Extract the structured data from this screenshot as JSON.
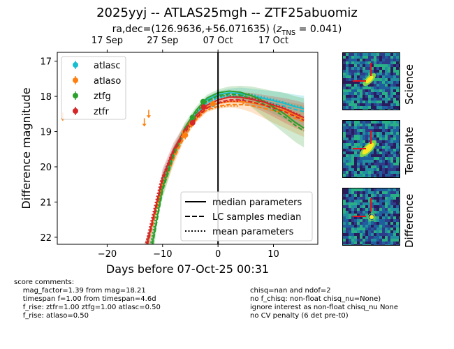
{
  "title": "2025yyj -- ATLAS25mgh -- ZTF25abuomiz",
  "subtitle_prefix": "ra,dec=(126.9636,+56.071635) (",
  "subtitle_z_symbol": "z",
  "subtitle_z_sub": "TNS",
  "subtitle_suffix": " = 0.041)",
  "chart_data": {
    "type": "scatter",
    "xlabel": "Days before 07-Oct-25 00:31",
    "ylabel": "Difference magnitude",
    "xlim": [
      -29,
      18
    ],
    "ylim": [
      22.2,
      16.75
    ],
    "x_ticks": [
      -20,
      -10,
      0,
      10
    ],
    "y_ticks": [
      17,
      18,
      19,
      20,
      21,
      22
    ],
    "top_axis_ticks": [
      {
        "label": "17 Sep",
        "x": -20
      },
      {
        "label": "27 Sep",
        "x": -10
      },
      {
        "label": "07 Oct",
        "x": 0
      },
      {
        "label": "17 Oct",
        "x": 10
      }
    ],
    "vline_x": 0,
    "series": [
      {
        "name": "atlasc",
        "color": "#17becf",
        "points": [
          {
            "x": -0.9,
            "y": 18.22,
            "err": 0.08
          }
        ],
        "upper_limits": []
      },
      {
        "name": "atlaso",
        "color": "#ff7f0e",
        "points": [
          {
            "x": -5.9,
            "y": 19.1,
            "err": 0.12
          },
          {
            "x": -4.8,
            "y": 18.78,
            "err": 0.1
          },
          {
            "x": -0.9,
            "y": 18.21,
            "err": 0.07
          }
        ],
        "upper_limits": [
          {
            "x": -28.0,
            "y": 18.58
          },
          {
            "x": -13.3,
            "y": 18.74
          },
          {
            "x": -12.5,
            "y": 18.5
          },
          {
            "x": -6.4,
            "y": 19.08
          }
        ]
      },
      {
        "name": "ztfg",
        "color": "#2ca02c",
        "points": [
          {
            "x": -4.6,
            "y": 18.6,
            "err": 0.05
          },
          {
            "x": -2.7,
            "y": 18.15,
            "err": 0.05
          }
        ],
        "upper_limits": []
      },
      {
        "name": "ztfr",
        "color": "#d62728",
        "points": [
          {
            "x": -4.6,
            "y": 18.75,
            "err": 0.05
          },
          {
            "x": -2.6,
            "y": 18.3,
            "err": 0.05
          }
        ],
        "upper_limits": []
      }
    ],
    "models": [
      {
        "series": "atlasc",
        "color": "#17becf",
        "median": [
          [
            -13,
            22.3
          ],
          [
            -10,
            20.4
          ],
          [
            -8,
            19.6
          ],
          [
            -6,
            19.0
          ],
          [
            -4,
            18.5
          ],
          [
            -2,
            18.1
          ],
          [
            0,
            17.95
          ],
          [
            2,
            17.9
          ],
          [
            4,
            17.92
          ],
          [
            6,
            17.98
          ],
          [
            8,
            18.05
          ],
          [
            10,
            18.12
          ],
          [
            12,
            18.2
          ],
          [
            14,
            18.3
          ],
          [
            15.5,
            18.35
          ]
        ],
        "band_hi": [
          [
            -12,
            22.3
          ],
          [
            -10,
            20.1
          ],
          [
            -8,
            19.4
          ],
          [
            -6,
            18.85
          ],
          [
            -4,
            18.4
          ],
          [
            -2,
            18.0
          ],
          [
            0,
            17.85
          ],
          [
            2,
            17.78
          ],
          [
            4,
            17.75
          ],
          [
            6,
            17.78
          ],
          [
            8,
            17.82
          ],
          [
            10,
            17.85
          ],
          [
            12,
            17.9
          ],
          [
            14,
            17.95
          ],
          [
            15.5,
            17.98
          ]
        ],
        "band_lo": [
          [
            -13.5,
            22.3
          ],
          [
            -10,
            20.7
          ],
          [
            -8,
            19.85
          ],
          [
            -6,
            19.15
          ],
          [
            -4,
            18.6
          ],
          [
            -2,
            18.22
          ],
          [
            0,
            18.05
          ],
          [
            2,
            18.02
          ],
          [
            4,
            18.08
          ],
          [
            6,
            18.2
          ],
          [
            8,
            18.35
          ],
          [
            10,
            18.5
          ],
          [
            12,
            18.65
          ],
          [
            14,
            18.8
          ],
          [
            15.5,
            18.9
          ]
        ]
      },
      {
        "series": "atlaso",
        "color": "#ff7f0e",
        "median": [
          [
            -13,
            22.3
          ],
          [
            -10,
            20.5
          ],
          [
            -8,
            19.7
          ],
          [
            -6,
            19.05
          ],
          [
            -4,
            18.6
          ],
          [
            -2,
            18.3
          ],
          [
            0,
            18.2
          ],
          [
            2,
            18.15
          ],
          [
            4,
            18.15
          ],
          [
            6,
            18.18
          ],
          [
            8,
            18.25
          ],
          [
            10,
            18.32
          ],
          [
            12,
            18.4
          ],
          [
            14,
            18.55
          ],
          [
            15.5,
            18.65
          ]
        ],
        "band_hi": [
          [
            -12,
            22.3
          ],
          [
            -10,
            20.2
          ],
          [
            -8,
            19.45
          ],
          [
            -6,
            18.9
          ],
          [
            -4,
            18.45
          ],
          [
            -2,
            18.15
          ],
          [
            0,
            18.05
          ],
          [
            2,
            18.0
          ],
          [
            4,
            17.98
          ],
          [
            6,
            18.0
          ],
          [
            8,
            18.05
          ],
          [
            10,
            18.1
          ],
          [
            12,
            18.15
          ],
          [
            14,
            18.2
          ],
          [
            15.5,
            18.25
          ]
        ],
        "band_lo": [
          [
            -13.5,
            22.3
          ],
          [
            -10,
            20.8
          ],
          [
            -8,
            19.95
          ],
          [
            -6,
            19.2
          ],
          [
            -4,
            18.75
          ],
          [
            -2,
            18.45
          ],
          [
            0,
            18.35
          ],
          [
            2,
            18.32
          ],
          [
            4,
            18.35
          ],
          [
            6,
            18.45
          ],
          [
            8,
            18.6
          ],
          [
            10,
            18.75
          ],
          [
            12,
            18.9
          ],
          [
            14,
            19.05
          ],
          [
            15.5,
            19.15
          ]
        ]
      },
      {
        "series": "ztfg",
        "color": "#2ca02c",
        "median": [
          [
            -12,
            22.3
          ],
          [
            -10,
            20.6
          ],
          [
            -8,
            19.6
          ],
          [
            -6,
            18.9
          ],
          [
            -4,
            18.4
          ],
          [
            -2,
            18.05
          ],
          [
            0,
            17.9
          ],
          [
            2,
            17.85
          ],
          [
            4,
            17.88
          ],
          [
            6,
            17.98
          ],
          [
            8,
            18.12
          ],
          [
            10,
            18.3
          ],
          [
            12,
            18.5
          ],
          [
            14,
            18.75
          ],
          [
            15.5,
            18.9
          ]
        ],
        "band_hi": [
          [
            -11.5,
            22.3
          ],
          [
            -10,
            20.3
          ],
          [
            -8,
            19.4
          ],
          [
            -6,
            18.75
          ],
          [
            -4,
            18.3
          ],
          [
            -2,
            17.95
          ],
          [
            0,
            17.8
          ],
          [
            2,
            17.72
          ],
          [
            4,
            17.7
          ],
          [
            6,
            17.72
          ],
          [
            8,
            17.78
          ],
          [
            10,
            17.85
          ],
          [
            12,
            17.9
          ],
          [
            14,
            18.0
          ],
          [
            15.5,
            18.05
          ]
        ],
        "band_lo": [
          [
            -12.5,
            22.3
          ],
          [
            -10,
            20.9
          ],
          [
            -8,
            19.85
          ],
          [
            -6,
            19.05
          ],
          [
            -4,
            18.5
          ],
          [
            -2,
            18.15
          ],
          [
            0,
            18.02
          ],
          [
            2,
            18.02
          ],
          [
            4,
            18.1
          ],
          [
            6,
            18.3
          ],
          [
            8,
            18.55
          ],
          [
            10,
            18.8
          ],
          [
            12,
            19.05
          ],
          [
            14,
            19.3
          ],
          [
            15.5,
            19.45
          ]
        ]
      },
      {
        "series": "ztfr",
        "color": "#d62728",
        "median": [
          [
            -13,
            22.3
          ],
          [
            -10,
            20.3
          ],
          [
            -8,
            19.5
          ],
          [
            -6,
            18.95
          ],
          [
            -4,
            18.55
          ],
          [
            -2,
            18.25
          ],
          [
            0,
            18.1
          ],
          [
            2,
            18.02
          ],
          [
            4,
            18.02
          ],
          [
            6,
            18.08
          ],
          [
            8,
            18.15
          ],
          [
            10,
            18.25
          ],
          [
            12,
            18.35
          ],
          [
            14,
            18.5
          ],
          [
            15.5,
            18.6
          ]
        ],
        "band_hi": [
          [
            -12.5,
            22.3
          ],
          [
            -10,
            20.05
          ],
          [
            -8,
            19.3
          ],
          [
            -6,
            18.8
          ],
          [
            -4,
            18.42
          ],
          [
            -2,
            18.12
          ],
          [
            0,
            17.98
          ],
          [
            2,
            17.9
          ],
          [
            4,
            17.88
          ],
          [
            6,
            17.9
          ],
          [
            8,
            17.95
          ],
          [
            10,
            18.0
          ],
          [
            12,
            18.05
          ],
          [
            14,
            18.12
          ],
          [
            15.5,
            18.18
          ]
        ],
        "band_lo": [
          [
            -13.5,
            22.3
          ],
          [
            -10,
            20.6
          ],
          [
            -8,
            19.75
          ],
          [
            -6,
            19.1
          ],
          [
            -4,
            18.68
          ],
          [
            -2,
            18.38
          ],
          [
            0,
            18.22
          ],
          [
            2,
            18.15
          ],
          [
            4,
            18.18
          ],
          [
            6,
            18.28
          ],
          [
            8,
            18.42
          ],
          [
            10,
            18.58
          ],
          [
            12,
            18.75
          ],
          [
            14,
            18.9
          ],
          [
            15.5,
            19.0
          ]
        ]
      }
    ],
    "legend_series_location": "upper-left",
    "legend_lines_location": "lower-right",
    "legend_lines": [
      {
        "label": "median parameters",
        "style": "solid"
      },
      {
        "label": "LC samples median",
        "style": "dashed"
      },
      {
        "label": "mean parameters",
        "style": "dotted"
      }
    ]
  },
  "stamps": [
    {
      "label": "Science"
    },
    {
      "label": "Template"
    },
    {
      "label": "Difference"
    }
  ],
  "comments_left": "score comments:\n    mag_factor=1.39 from mag=18.21\n    timespan f=1.00 from timespan=4.6d\n    f_rise: ztfr=1.00 ztfg=1.00 atlasc=0.50\n    f_rise: atlaso=0.50",
  "comments_right": "chisq=nan and ndof=2\nno f_chisq: non-float chisq_nu=None)\nignore interest as non-float chisq_nu None\nno CV penalty (6 det pre-t0)"
}
